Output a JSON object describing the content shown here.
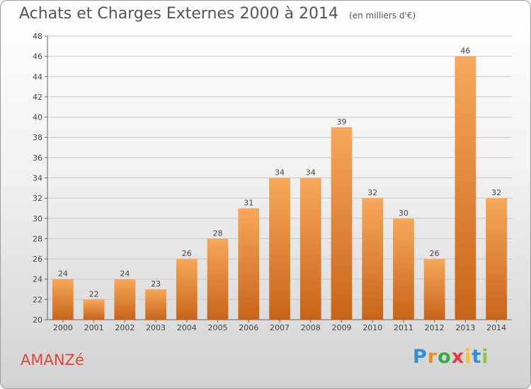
{
  "title": "Achats et Charges Externes 2000 à 2014",
  "unit_note": "(en milliers d'€)",
  "commune": "AMANZé",
  "logo": {
    "letters": [
      "P",
      "r",
      "o",
      "x",
      "i",
      "t",
      "i"
    ],
    "colors": [
      "#2f8fd8",
      "#f08c1c",
      "#2fae3b",
      "#e23b3b",
      "#f0c419",
      "#2f8fd8",
      "#8cc63f"
    ]
  },
  "colors": {
    "bar_top": "#f7a85a",
    "bar_bottom": "#c8641a",
    "grid": "#c8c8c8",
    "axis": "#666666",
    "label_text": "#444444",
    "commune_text": "#e0463e"
  },
  "chart_data": {
    "type": "bar",
    "title": "Achats et Charges Externes 2000 à 2014",
    "subtitle": "(en milliers d'€)",
    "categories": [
      "2000",
      "2001",
      "2002",
      "2003",
      "2004",
      "2005",
      "2006",
      "2007",
      "2008",
      "2009",
      "2010",
      "2011",
      "2012",
      "2013",
      "2014"
    ],
    "values": [
      24,
      22,
      24,
      23,
      26,
      28,
      31,
      34,
      34,
      39,
      32,
      30,
      26,
      46,
      32
    ],
    "ylim": [
      20,
      48
    ],
    "yticks": [
      20,
      22,
      24,
      26,
      28,
      30,
      32,
      34,
      36,
      38,
      40,
      42,
      44,
      46,
      48
    ],
    "xlabel": "",
    "ylabel": "",
    "grid": true,
    "data_labels": true
  }
}
